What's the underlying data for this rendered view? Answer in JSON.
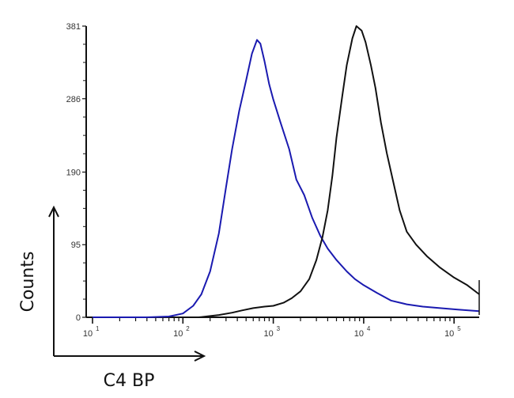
{
  "chart_data": {
    "type": "line",
    "title": "",
    "xlabel": "C4 BP",
    "ylabel": "Counts",
    "xscale": "log",
    "xlim": [
      8.5,
      190000
    ],
    "ylim": [
      0,
      381
    ],
    "y_ticks": [
      0,
      95,
      190,
      286,
      381
    ],
    "y_tick_labels": [
      "0",
      "95",
      "190",
      "286",
      "381"
    ],
    "x_ticks": [
      10,
      100,
      1000,
      10000,
      100000
    ],
    "x_tick_labels": [
      {
        "base": "10",
        "exp": "1"
      },
      {
        "base": "10",
        "exp": "2"
      },
      {
        "base": "10",
        "exp": "3"
      },
      {
        "base": "10",
        "exp": "4"
      },
      {
        "base": "10",
        "exp": "5"
      }
    ],
    "grid": false,
    "legend": null,
    "series": [
      {
        "name": "blue histogram",
        "color": "#1a1ab0",
        "points": [
          [
            10,
            0
          ],
          [
            40,
            0
          ],
          [
            70,
            1
          ],
          [
            100,
            5
          ],
          [
            130,
            15
          ],
          [
            160,
            30
          ],
          [
            200,
            60
          ],
          [
            250,
            110
          ],
          [
            300,
            170
          ],
          [
            350,
            220
          ],
          [
            420,
            270
          ],
          [
            500,
            310
          ],
          [
            580,
            345
          ],
          [
            660,
            363
          ],
          [
            720,
            358
          ],
          [
            800,
            335
          ],
          [
            900,
            305
          ],
          [
            1000,
            285
          ],
          [
            1200,
            255
          ],
          [
            1500,
            220
          ],
          [
            1800,
            180
          ],
          [
            2200,
            160
          ],
          [
            2700,
            130
          ],
          [
            3300,
            107
          ],
          [
            4000,
            90
          ],
          [
            5000,
            75
          ],
          [
            6500,
            60
          ],
          [
            8000,
            50
          ],
          [
            10000,
            42
          ],
          [
            14000,
            32
          ],
          [
            20000,
            22
          ],
          [
            30000,
            17
          ],
          [
            45000,
            14
          ],
          [
            70000,
            12
          ],
          [
            110000,
            10
          ],
          [
            190000,
            8
          ]
        ]
      },
      {
        "name": "black histogram",
        "color": "#111111",
        "points": [
          [
            150,
            0
          ],
          [
            250,
            3
          ],
          [
            350,
            6
          ],
          [
            450,
            9
          ],
          [
            600,
            12
          ],
          [
            800,
            14
          ],
          [
            1000,
            15
          ],
          [
            1300,
            19
          ],
          [
            1600,
            25
          ],
          [
            2000,
            34
          ],
          [
            2500,
            50
          ],
          [
            3000,
            75
          ],
          [
            3500,
            105
          ],
          [
            4000,
            140
          ],
          [
            4500,
            185
          ],
          [
            5000,
            235
          ],
          [
            5800,
            290
          ],
          [
            6500,
            330
          ],
          [
            7500,
            365
          ],
          [
            8300,
            381
          ],
          [
            9500,
            375
          ],
          [
            10500,
            360
          ],
          [
            12000,
            330
          ],
          [
            13500,
            300
          ],
          [
            15500,
            255
          ],
          [
            18000,
            215
          ],
          [
            21000,
            180
          ],
          [
            25000,
            140
          ],
          [
            30000,
            112
          ],
          [
            38000,
            95
          ],
          [
            50000,
            80
          ],
          [
            70000,
            65
          ],
          [
            100000,
            52
          ],
          [
            140000,
            42
          ],
          [
            190000,
            30
          ]
        ]
      }
    ]
  }
}
